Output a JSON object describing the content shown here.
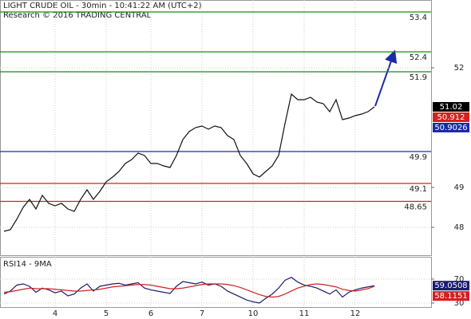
{
  "chart_data": [
    {
      "type": "line",
      "title": "LIGHT CRUDE OIL - 30min - 10:41:22 AM (UTC+2)",
      "subtitle": "Research © 2016 TRADING CENTRAL",
      "categories": [
        null,
        null,
        null,
        null,
        null,
        null,
        null,
        null,
        "4",
        null,
        null,
        null,
        null,
        null,
        null,
        null,
        "5",
        null,
        null,
        null,
        null,
        null,
        null,
        "6",
        null,
        null,
        null,
        null,
        null,
        null,
        null,
        "7",
        null,
        null,
        null,
        null,
        null,
        null,
        null,
        "10",
        null,
        null,
        null,
        null,
        null,
        null,
        null,
        "11",
        null,
        null,
        null,
        null,
        null,
        null,
        null,
        "12",
        null,
        null,
        null
      ],
      "series": [
        {
          "color": "#111111",
          "values": [
            47.9,
            47.94,
            48.2,
            48.5,
            48.7,
            48.46,
            48.8,
            48.6,
            48.54,
            48.6,
            48.46,
            48.4,
            48.7,
            48.94,
            48.7,
            48.9,
            49.14,
            49.26,
            49.4,
            49.6,
            49.7,
            49.86,
            49.8,
            49.6,
            49.6,
            49.54,
            49.5,
            49.8,
            50.2,
            50.4,
            50.5,
            50.54,
            50.46,
            50.54,
            50.5,
            50.3,
            50.2,
            49.8,
            49.6,
            49.34,
            49.26,
            49.4,
            49.54,
            49.8,
            50.6,
            51.34,
            51.2,
            51.2,
            51.26,
            51.14,
            51.1,
            50.9,
            51.2,
            50.7,
            50.74,
            50.8,
            50.84,
            50.9,
            51.02
          ]
        }
      ],
      "levels": [
        {
          "value": 53.4,
          "color": "#1a8a1a"
        },
        {
          "value": 52.4,
          "color": "#1a8a1a"
        },
        {
          "value": 51.9,
          "color": "#1a8a1a"
        },
        {
          "value": 49.9,
          "color": "#1c2aa8"
        },
        {
          "value": 49.1,
          "color": "#d42020"
        },
        {
          "value": 48.65,
          "color": "#d42020"
        }
      ],
      "markers": [
        {
          "value": 50.912,
          "color": "#d42020"
        },
        {
          "value": 50.9026,
          "color": "#1c2aa8"
        }
      ],
      "ylim": [
        47.3,
        53.7
      ],
      "yticks": [
        48,
        49,
        52
      ],
      "grid": true
    },
    {
      "type": "line",
      "title": "RSI14 - 9MA",
      "series": [
        {
          "color": "#1c1c6e",
          "values": [
            45,
            50,
            60,
            62,
            58,
            48,
            55,
            52,
            47,
            50,
            42,
            45,
            55,
            62,
            50,
            58,
            60,
            62,
            63,
            60,
            62,
            64,
            55,
            52,
            50,
            48,
            46,
            58,
            66,
            64,
            62,
            65,
            60,
            62,
            58,
            50,
            45,
            40,
            35,
            32,
            30,
            38,
            45,
            55,
            68,
            73,
            65,
            60,
            58,
            55,
            50,
            45,
            52,
            40,
            48,
            52,
            55,
            57,
            59.0508
          ]
        },
        {
          "color": "#d42020",
          "values": [
            48,
            49,
            51,
            53,
            55,
            54,
            54,
            54,
            53,
            52,
            51,
            50,
            50,
            51,
            52,
            53,
            55,
            57,
            58,
            59,
            60,
            61,
            61,
            60,
            58,
            56,
            54,
            54,
            55,
            57,
            59,
            61,
            62,
            62,
            62,
            61,
            59,
            56,
            52,
            48,
            44,
            41,
            40,
            41,
            45,
            50,
            55,
            58,
            61,
            62,
            61,
            59,
            57,
            53,
            51,
            50,
            52,
            54,
            58.1151
          ]
        }
      ],
      "ylim": [
        23.3,
        107.3
      ],
      "yticks": [
        30,
        70
      ],
      "grid": true
    }
  ]
}
